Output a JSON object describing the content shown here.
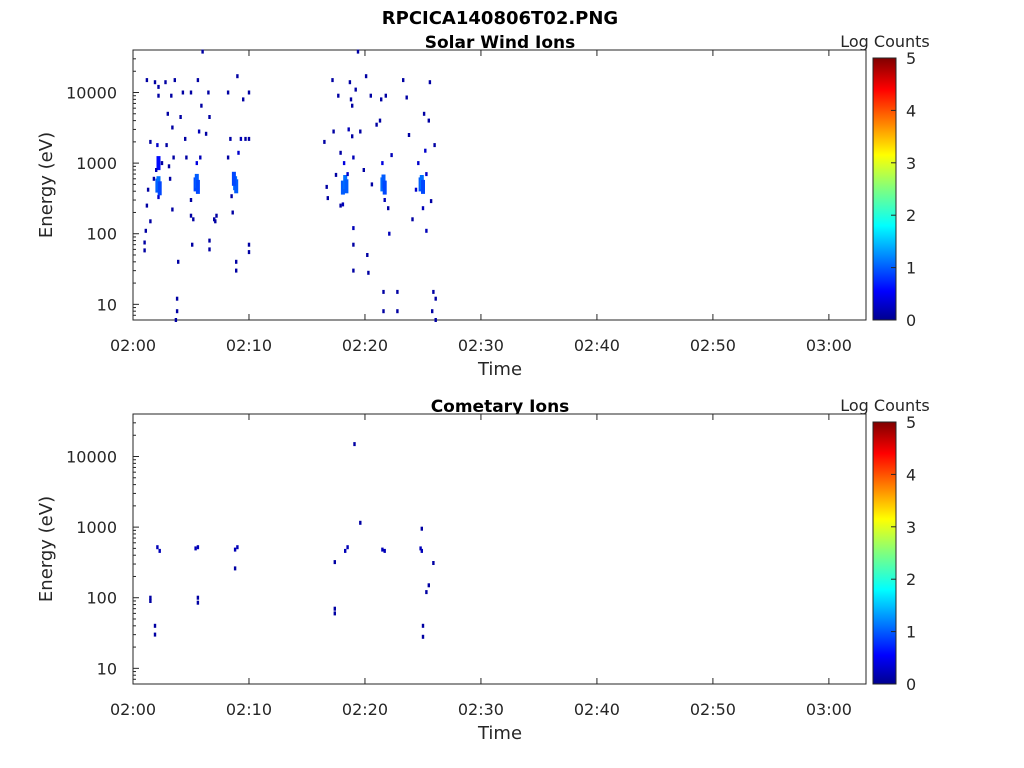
{
  "figure_title": "RPCICA140806T02.PNG",
  "chart_data": [
    {
      "type": "heatmap",
      "title": "Solar Wind Ions",
      "xlabel": "Time",
      "ylabel": "Energy (eV)",
      "x_ticks": [
        "02:00",
        "02:10",
        "02:20",
        "02:30",
        "02:40",
        "02:50",
        "03:00"
      ],
      "x_tick_minutes": [
        0,
        10,
        20,
        30,
        40,
        50,
        60
      ],
      "xlim_minutes": [
        0,
        63.2
      ],
      "y_scale": "log",
      "y_ticks": [
        "10",
        "100",
        "1000",
        "10000"
      ],
      "y_tick_values": [
        10,
        100,
        1000,
        10000
      ],
      "ylim": [
        6,
        40000
      ],
      "colorbar": {
        "label": "Log Counts",
        "ticks": [
          "0",
          "1",
          "2",
          "3",
          "4",
          "5"
        ],
        "range": [
          0,
          5
        ],
        "colormap": "jet"
      },
      "clusters_minutes": [
        2.2,
        5.5,
        8.8,
        18.4,
        21.6,
        24.9
      ],
      "peak_energy_eV": 480,
      "points": [
        [
          1.0,
          58,
          0.1
        ],
        [
          1.0,
          75,
          0.1
        ],
        [
          1.1,
          110,
          0.1
        ],
        [
          1.2,
          250,
          0.1
        ],
        [
          1.3,
          420,
          0.1
        ],
        [
          1.2,
          15000,
          0.1
        ],
        [
          1.5,
          150,
          0.1
        ],
        [
          1.5,
          2000,
          0.1
        ],
        [
          1.8,
          600,
          0.1
        ],
        [
          1.9,
          14000,
          0.1
        ],
        [
          2.1,
          480,
          1.0
        ],
        [
          2.2,
          520,
          1.1
        ],
        [
          2.2,
          1000,
          0.6
        ],
        [
          2.3,
          440,
          0.9
        ],
        [
          2.1,
          1800,
          0.3
        ],
        [
          2.2,
          330,
          0.3
        ],
        [
          2.0,
          800,
          0.2
        ],
        [
          2.2,
          12000,
          0.1
        ],
        [
          2.2,
          9000,
          0.1
        ],
        [
          2.5,
          1000,
          0.1
        ],
        [
          2.8,
          14000,
          0.1
        ],
        [
          2.9,
          1800,
          0.1
        ],
        [
          3.0,
          5000,
          0.1
        ],
        [
          3.1,
          900,
          0.1
        ],
        [
          3.2,
          600,
          0.1
        ],
        [
          3.3,
          9000,
          0.1
        ],
        [
          3.4,
          3200,
          0.1
        ],
        [
          3.5,
          1200,
          0.1
        ],
        [
          3.6,
          15000,
          0.1
        ],
        [
          3.4,
          220,
          0.1
        ],
        [
          3.8,
          8,
          0.1
        ],
        [
          3.8,
          12,
          0.1
        ],
        [
          3.9,
          40,
          0.1
        ],
        [
          3.7,
          6,
          0.1
        ],
        [
          4.1,
          4500,
          0.1
        ],
        [
          4.3,
          10000,
          0.1
        ],
        [
          4.5,
          2200,
          0.1
        ],
        [
          4.6,
          1200,
          0.1
        ],
        [
          5.0,
          10000,
          0.1
        ],
        [
          5.0,
          300,
          0.1
        ],
        [
          5.0,
          180,
          0.1
        ],
        [
          5.1,
          70,
          0.1
        ],
        [
          5.2,
          160,
          0.1
        ],
        [
          5.4,
          500,
          0.9
        ],
        [
          5.5,
          560,
          1.0
        ],
        [
          5.6,
          460,
          0.9
        ],
        [
          5.5,
          1000,
          0.4
        ],
        [
          5.7,
          2800,
          0.2
        ],
        [
          5.6,
          15000,
          0.1
        ],
        [
          5.8,
          1200,
          0.2
        ],
        [
          5.9,
          6500,
          0.1
        ],
        [
          6.0,
          38000,
          0.1
        ],
        [
          6.3,
          2600,
          0.1
        ],
        [
          6.5,
          10000,
          0.1
        ],
        [
          6.6,
          4500,
          0.1
        ],
        [
          6.6,
          80,
          0.1
        ],
        [
          6.6,
          60,
          0.1
        ],
        [
          7.0,
          160,
          0.1
        ],
        [
          7.2,
          180,
          0.1
        ],
        [
          7.1,
          150,
          0.1
        ],
        [
          8.2,
          1200,
          0.1
        ],
        [
          8.2,
          10000,
          0.1
        ],
        [
          8.4,
          2200,
          0.1
        ],
        [
          8.5,
          340,
          0.1
        ],
        [
          8.6,
          200,
          0.1
        ],
        [
          8.8,
          520,
          1.1
        ],
        [
          8.9,
          470,
          1.0
        ],
        [
          8.7,
          600,
          0.9
        ],
        [
          8.9,
          40,
          0.1
        ],
        [
          8.9,
          30,
          0.1
        ],
        [
          9.0,
          17000,
          0.1
        ],
        [
          9.1,
          1400,
          0.3
        ],
        [
          9.3,
          2200,
          0.2
        ],
        [
          9.5,
          8000,
          0.1
        ],
        [
          9.7,
          2200,
          0.1
        ],
        [
          10.0,
          10000,
          0.1
        ],
        [
          10.0,
          2200,
          0.1
        ],
        [
          10.0,
          70,
          0.1
        ],
        [
          10.0,
          55,
          0.1
        ],
        [
          16.5,
          2000,
          0.1
        ],
        [
          16.7,
          460,
          0.1
        ],
        [
          16.8,
          320,
          0.1
        ],
        [
          17.2,
          15000,
          0.1
        ],
        [
          17.3,
          2800,
          0.1
        ],
        [
          17.5,
          680,
          0.1
        ],
        [
          17.7,
          9000,
          0.1
        ],
        [
          17.9,
          1400,
          0.1
        ],
        [
          17.9,
          250,
          0.1
        ],
        [
          18.1,
          450,
          1.0
        ],
        [
          18.3,
          540,
          1.1
        ],
        [
          18.4,
          470,
          1.0
        ],
        [
          18.2,
          1000,
          0.4
        ],
        [
          18.1,
          260,
          0.2
        ],
        [
          18.5,
          700,
          0.3
        ],
        [
          18.6,
          3000,
          0.2
        ],
        [
          18.7,
          14000,
          0.1
        ],
        [
          18.8,
          8000,
          0.1
        ],
        [
          18.9,
          6500,
          0.1
        ],
        [
          18.9,
          2400,
          0.1
        ],
        [
          19.0,
          1200,
          0.2
        ],
        [
          19.0,
          120,
          0.2
        ],
        [
          19.0,
          30,
          0.1
        ],
        [
          19.0,
          70,
          0.1
        ],
        [
          19.2,
          11000,
          0.1
        ],
        [
          19.4,
          38000,
          0.1
        ],
        [
          19.6,
          2800,
          0.1
        ],
        [
          19.9,
          800,
          0.1
        ],
        [
          20.1,
          17000,
          0.1
        ],
        [
          20.2,
          50,
          0.1
        ],
        [
          20.3,
          28,
          0.1
        ],
        [
          20.5,
          9000,
          0.1
        ],
        [
          20.6,
          500,
          0.1
        ],
        [
          21.0,
          3500,
          0.1
        ],
        [
          21.3,
          4000,
          0.1
        ],
        [
          21.4,
          8000,
          0.1
        ],
        [
          21.5,
          500,
          1.1
        ],
        [
          21.6,
          550,
          1.0
        ],
        [
          21.7,
          450,
          0.9
        ],
        [
          21.5,
          1000,
          0.4
        ],
        [
          21.8,
          9000,
          0.1
        ],
        [
          21.7,
          300,
          0.2
        ],
        [
          21.6,
          8,
          0.1
        ],
        [
          21.6,
          15,
          0.1
        ],
        [
          22.0,
          230,
          0.1
        ],
        [
          22.1,
          100,
          0.2
        ],
        [
          22.3,
          1300,
          0.2
        ],
        [
          22.8,
          8,
          0.1
        ],
        [
          22.8,
          15,
          0.1
        ],
        [
          23.3,
          15000,
          0.1
        ],
        [
          23.6,
          8500,
          0.1
        ],
        [
          23.8,
          2500,
          0.1
        ],
        [
          24.1,
          160,
          0.1
        ],
        [
          24.4,
          420,
          0.3
        ],
        [
          24.6,
          1000,
          0.3
        ],
        [
          24.8,
          500,
          1.0
        ],
        [
          24.9,
          540,
          1.1
        ],
        [
          25.0,
          460,
          0.9
        ],
        [
          25.0,
          230,
          0.2
        ],
        [
          25.1,
          5000,
          0.1
        ],
        [
          25.2,
          1500,
          0.3
        ],
        [
          25.3,
          700,
          0.3
        ],
        [
          25.3,
          110,
          0.2
        ],
        [
          25.5,
          4000,
          0.1
        ],
        [
          25.6,
          14000,
          0.1
        ],
        [
          25.7,
          290,
          0.1
        ],
        [
          25.8,
          8
        ],
        [
          25.9,
          15,
          0.1
        ],
        [
          26.0,
          1800,
          0.1
        ],
        [
          26.1,
          6,
          0.1
        ],
        [
          26.1,
          12,
          0.1
        ]
      ]
    },
    {
      "type": "heatmap",
      "title": "Cometary Ions",
      "xlabel": "Time",
      "ylabel": "Energy (eV)",
      "x_ticks": [
        "02:00",
        "02:10",
        "02:20",
        "02:30",
        "02:40",
        "02:50",
        "03:00"
      ],
      "x_tick_minutes": [
        0,
        10,
        20,
        30,
        40,
        50,
        60
      ],
      "xlim_minutes": [
        0,
        63.2
      ],
      "y_scale": "log",
      "y_ticks": [
        "10",
        "100",
        "1000",
        "10000"
      ],
      "y_tick_values": [
        10,
        100,
        1000,
        10000
      ],
      "ylim": [
        6,
        40000
      ],
      "colorbar": {
        "label": "Log Counts",
        "ticks": [
          "0",
          "1",
          "2",
          "3",
          "4",
          "5"
        ],
        "range": [
          0,
          5
        ],
        "colormap": "jet"
      },
      "points": [
        [
          1.5,
          100,
          0.1
        ],
        [
          1.5,
          90,
          0.1
        ],
        [
          1.9,
          40,
          0.1
        ],
        [
          1.9,
          30,
          0.1
        ],
        [
          2.1,
          520,
          0.2
        ],
        [
          2.3,
          460,
          0.2
        ],
        [
          5.4,
          500,
          0.2
        ],
        [
          5.6,
          520,
          0.2
        ],
        [
          5.6,
          100,
          0.1
        ],
        [
          5.6,
          85,
          0.1
        ],
        [
          8.8,
          480,
          0.2
        ],
        [
          9.0,
          520,
          0.2
        ],
        [
          8.8,
          260,
          0.1
        ],
        [
          17.4,
          320,
          0.1
        ],
        [
          17.4,
          70,
          0.1
        ],
        [
          17.4,
          60,
          0.1
        ],
        [
          18.3,
          460,
          0.2
        ],
        [
          18.5,
          520,
          0.2
        ],
        [
          19.1,
          15000,
          0.1
        ],
        [
          19.6,
          1150,
          0.1
        ],
        [
          21.5,
          480,
          0.2
        ],
        [
          21.7,
          460,
          0.2
        ],
        [
          24.8,
          500,
          0.2
        ],
        [
          24.9,
          460,
          0.2
        ],
        [
          24.9,
          950,
          0.1
        ],
        [
          25.0,
          40,
          0.1
        ],
        [
          25.0,
          28,
          0.1
        ],
        [
          25.3,
          120,
          0.1
        ],
        [
          25.5,
          150,
          0.1
        ],
        [
          25.9,
          310,
          0.1
        ]
      ]
    }
  ]
}
